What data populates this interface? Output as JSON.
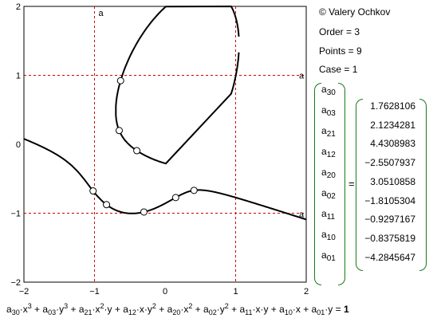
{
  "info": {
    "copyright": "© Valery Ochkov",
    "order": "Order = 3",
    "points": "Points = 9",
    "case": "Case = 1"
  },
  "plot": {
    "x_ticks": [
      "−2",
      "−1",
      "0",
      "1",
      "2"
    ],
    "y_ticks": [
      "2",
      "1",
      "0",
      "−1",
      "−2"
    ],
    "marker_label": "a",
    "colors": {
      "axis": "#000000",
      "grid": "#cc0000",
      "curve": "#000000",
      "matrix_bracket": "#1a7a1a"
    }
  },
  "matrix": {
    "names": [
      {
        "base": "a",
        "sub": "30"
      },
      {
        "base": "a",
        "sub": "03"
      },
      {
        "base": "a",
        "sub": "21"
      },
      {
        "base": "a",
        "sub": "12"
      },
      {
        "base": "a",
        "sub": "20"
      },
      {
        "base": "a",
        "sub": "02"
      },
      {
        "base": "a",
        "sub": "11"
      },
      {
        "base": "a",
        "sub": "10"
      },
      {
        "base": "a",
        "sub": "01"
      }
    ],
    "equals": "=",
    "values": [
      "1.7628106",
      "2.1234281",
      "4.4308983",
      "−2.5507937",
      "3.0510858",
      "−1.8105304",
      "−0.9297167",
      "−0.8375819",
      "−4.2845647"
    ]
  },
  "formula": {
    "terms": [
      {
        "c": "30",
        "m": "x3"
      },
      {
        "c": "03",
        "m": "y3"
      },
      {
        "c": "21",
        "m": "x2y"
      },
      {
        "c": "12",
        "m": "xy2"
      },
      {
        "c": "20",
        "m": "x2"
      },
      {
        "c": "02",
        "m": "y2"
      },
      {
        "c": "11",
        "m": "xy"
      },
      {
        "c": "10",
        "m": "x"
      },
      {
        "c": "01",
        "m": "y"
      }
    ],
    "rhs": "1"
  }
}
